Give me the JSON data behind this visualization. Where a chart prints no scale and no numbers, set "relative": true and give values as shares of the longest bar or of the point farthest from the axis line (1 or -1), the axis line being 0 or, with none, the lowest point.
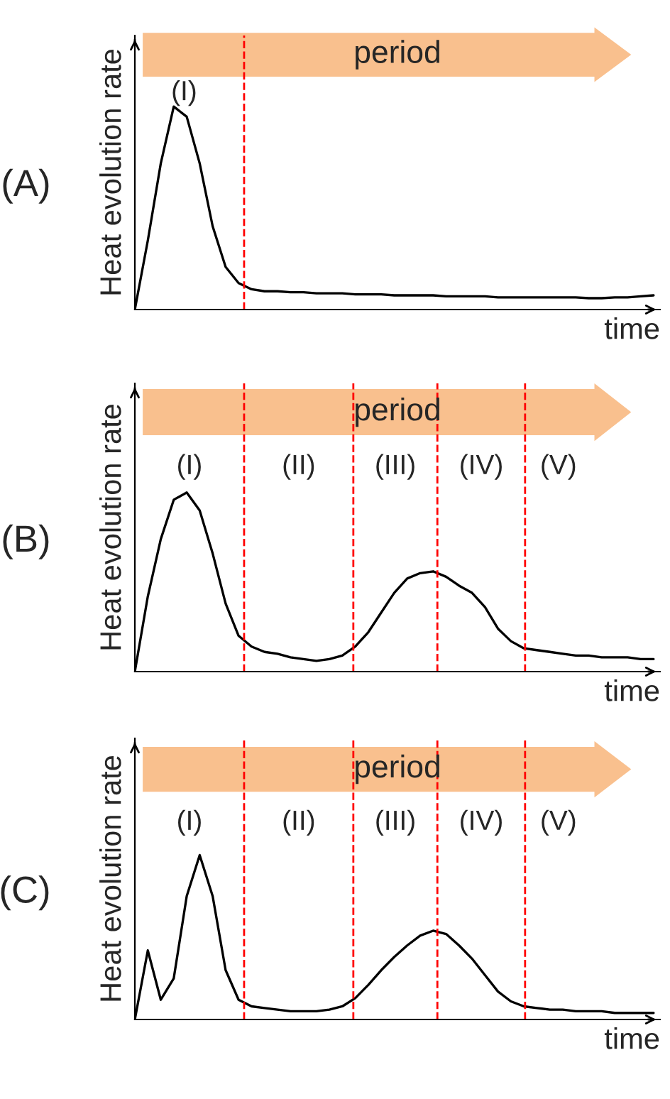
{
  "chart_data": [
    {
      "type": "line",
      "title": "(A)",
      "ylabel": "Heat evolution rate",
      "xlabel": "time",
      "relative": true,
      "tick_labels": false,
      "marker": "none",
      "line_style": "solid",
      "categories": [
        null,
        null,
        null,
        null,
        null,
        null,
        null,
        null,
        null,
        null,
        null,
        null,
        null,
        null,
        null,
        null,
        null,
        null,
        null,
        null,
        null,
        null,
        null,
        null,
        null,
        null,
        null,
        null,
        null,
        null,
        null,
        null,
        null,
        null,
        null,
        null,
        null,
        null,
        null,
        null,
        null
      ],
      "series": [
        {
          "color": "#000000",
          "values": [
            0,
            0.34,
            0.72,
            1.0,
            0.95,
            0.72,
            0.41,
            0.21,
            0.13,
            0.1,
            0.09,
            0.09,
            0.085,
            0.085,
            0.08,
            0.08,
            0.08,
            0.075,
            0.075,
            0.075,
            0.07,
            0.07,
            0.07,
            0.07,
            0.065,
            0.065,
            0.065,
            0.065,
            0.06,
            0.06,
            0.06,
            0.06,
            0.06,
            0.06,
            0.06,
            0.056,
            0.056,
            0.06,
            0.06,
            0.065,
            0.07
          ]
        }
      ],
      "annotations": [
        "period",
        "(I)"
      ]
    },
    {
      "type": "line",
      "title": "(B)",
      "ylabel": "Heat evolution rate",
      "xlabel": "time",
      "relative": true,
      "tick_labels": false,
      "marker": "none",
      "line_style": "solid",
      "categories": [
        null,
        null,
        null,
        null,
        null,
        null,
        null,
        null,
        null,
        null,
        null,
        null,
        null,
        null,
        null,
        null,
        null,
        null,
        null,
        null,
        null,
        null,
        null,
        null,
        null,
        null,
        null,
        null,
        null,
        null,
        null,
        null,
        null,
        null,
        null,
        null,
        null,
        null,
        null,
        null,
        null
      ],
      "series": [
        {
          "color": "#000000",
          "values": [
            0,
            0.42,
            0.74,
            0.96,
            1.0,
            0.9,
            0.66,
            0.38,
            0.2,
            0.14,
            0.11,
            0.1,
            0.08,
            0.07,
            0.06,
            0.07,
            0.09,
            0.14,
            0.22,
            0.33,
            0.44,
            0.52,
            0.55,
            0.56,
            0.53,
            0.48,
            0.44,
            0.36,
            0.24,
            0.17,
            0.13,
            0.12,
            0.11,
            0.1,
            0.09,
            0.09,
            0.08,
            0.08,
            0.08,
            0.07,
            0.07
          ]
        }
      ],
      "annotations": [
        "period",
        "(I)",
        "(II)",
        "(III)",
        "(IV)",
        "(V)"
      ]
    },
    {
      "type": "line",
      "title": "(C)",
      "ylabel": "Heat evolution rate",
      "xlabel": "time",
      "relative": true,
      "tick_labels": false,
      "marker": "none",
      "line_style": "solid",
      "categories": [
        null,
        null,
        null,
        null,
        null,
        null,
        null,
        null,
        null,
        null,
        null,
        null,
        null,
        null,
        null,
        null,
        null,
        null,
        null,
        null,
        null,
        null,
        null,
        null,
        null,
        null,
        null,
        null,
        null,
        null,
        null,
        null,
        null,
        null,
        null,
        null,
        null,
        null,
        null,
        null,
        null
      ],
      "series": [
        {
          "color": "#000000",
          "values": [
            0,
            0.42,
            0.12,
            0.25,
            0.75,
            1.0,
            0.75,
            0.3,
            0.12,
            0.08,
            0.07,
            0.06,
            0.05,
            0.05,
            0.05,
            0.06,
            0.08,
            0.13,
            0.21,
            0.3,
            0.38,
            0.45,
            0.51,
            0.54,
            0.52,
            0.45,
            0.37,
            0.27,
            0.17,
            0.11,
            0.08,
            0.07,
            0.06,
            0.06,
            0.05,
            0.05,
            0.05,
            0.04,
            0.04,
            0.04,
            0.04
          ]
        }
      ],
      "annotations": [
        "period",
        "(I)",
        "(II)",
        "(III)",
        "(IV)",
        "(V)"
      ]
    }
  ]
}
